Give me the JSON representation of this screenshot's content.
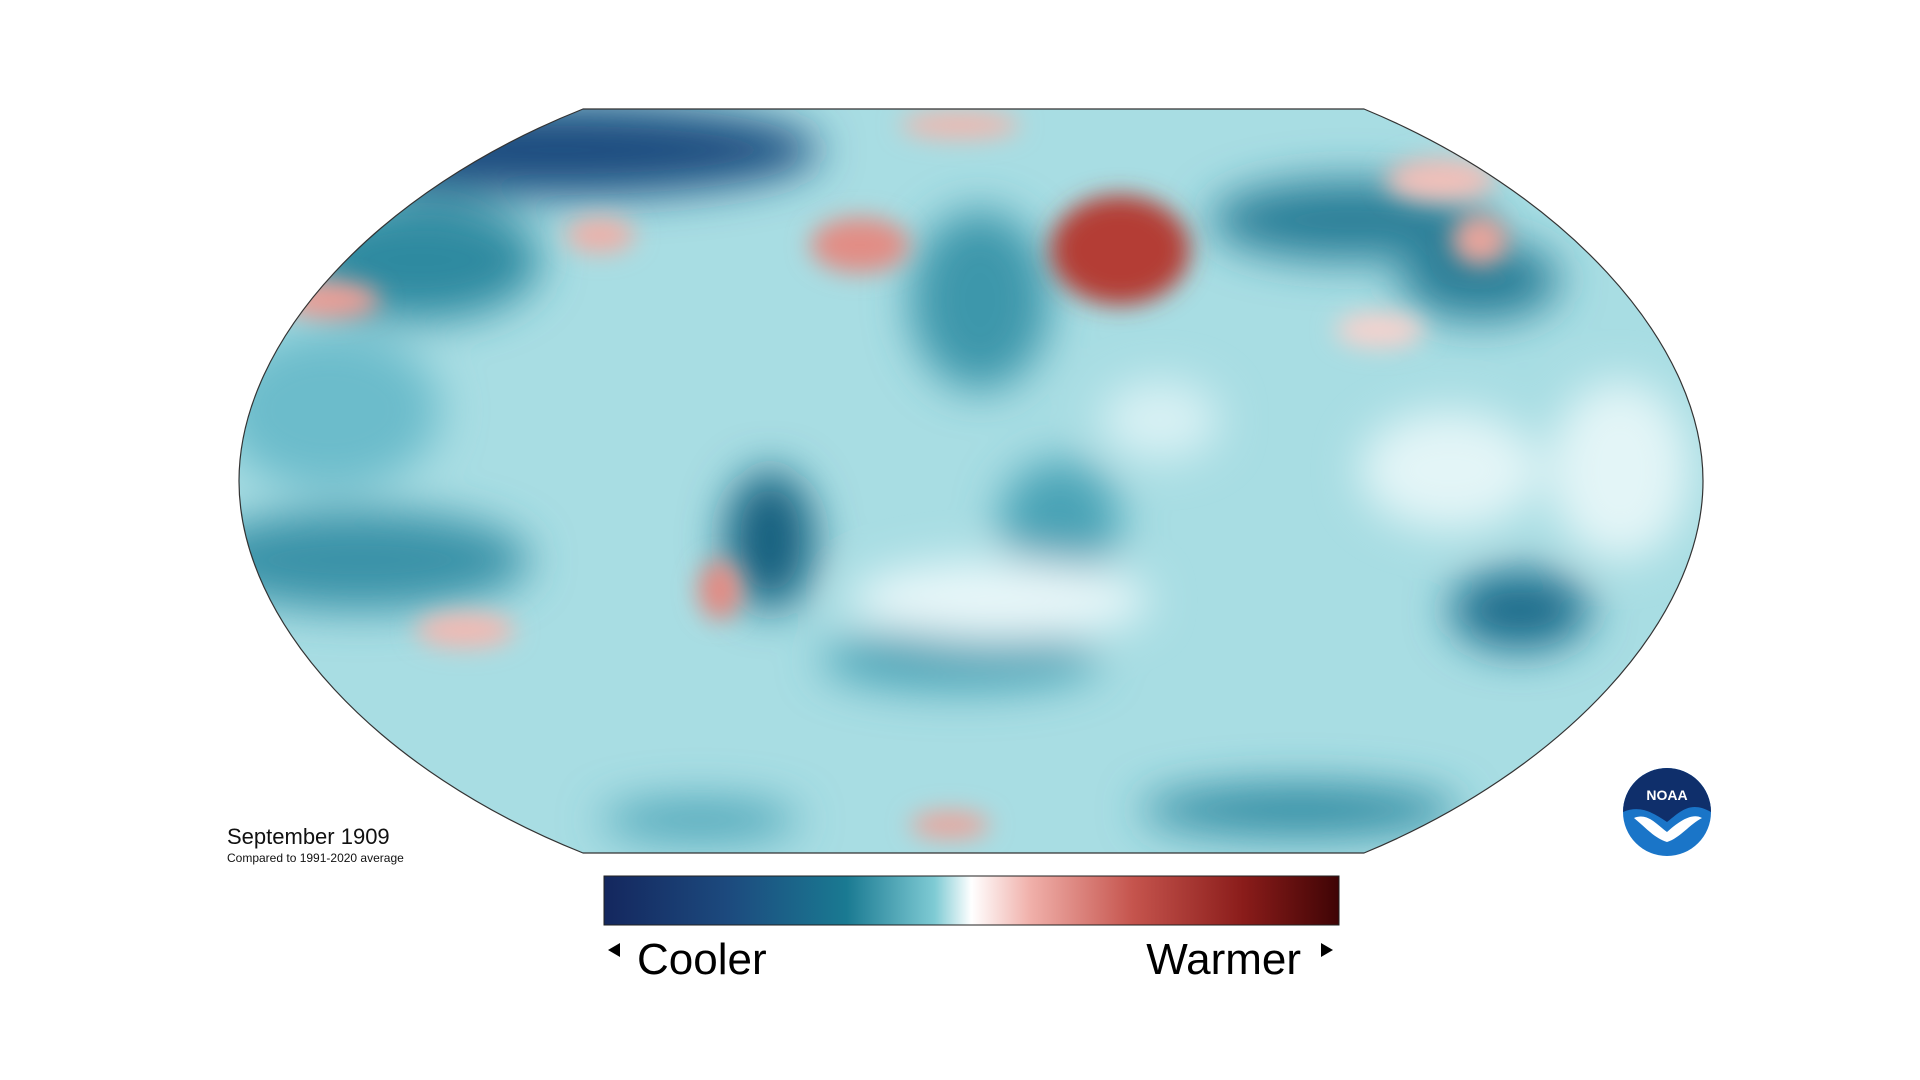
{
  "title": "September 1909",
  "subtitle": "Compared to 1991-2020 average",
  "legend": {
    "low": "Cooler",
    "high": "Warmer"
  },
  "logo": "NOAA"
}
